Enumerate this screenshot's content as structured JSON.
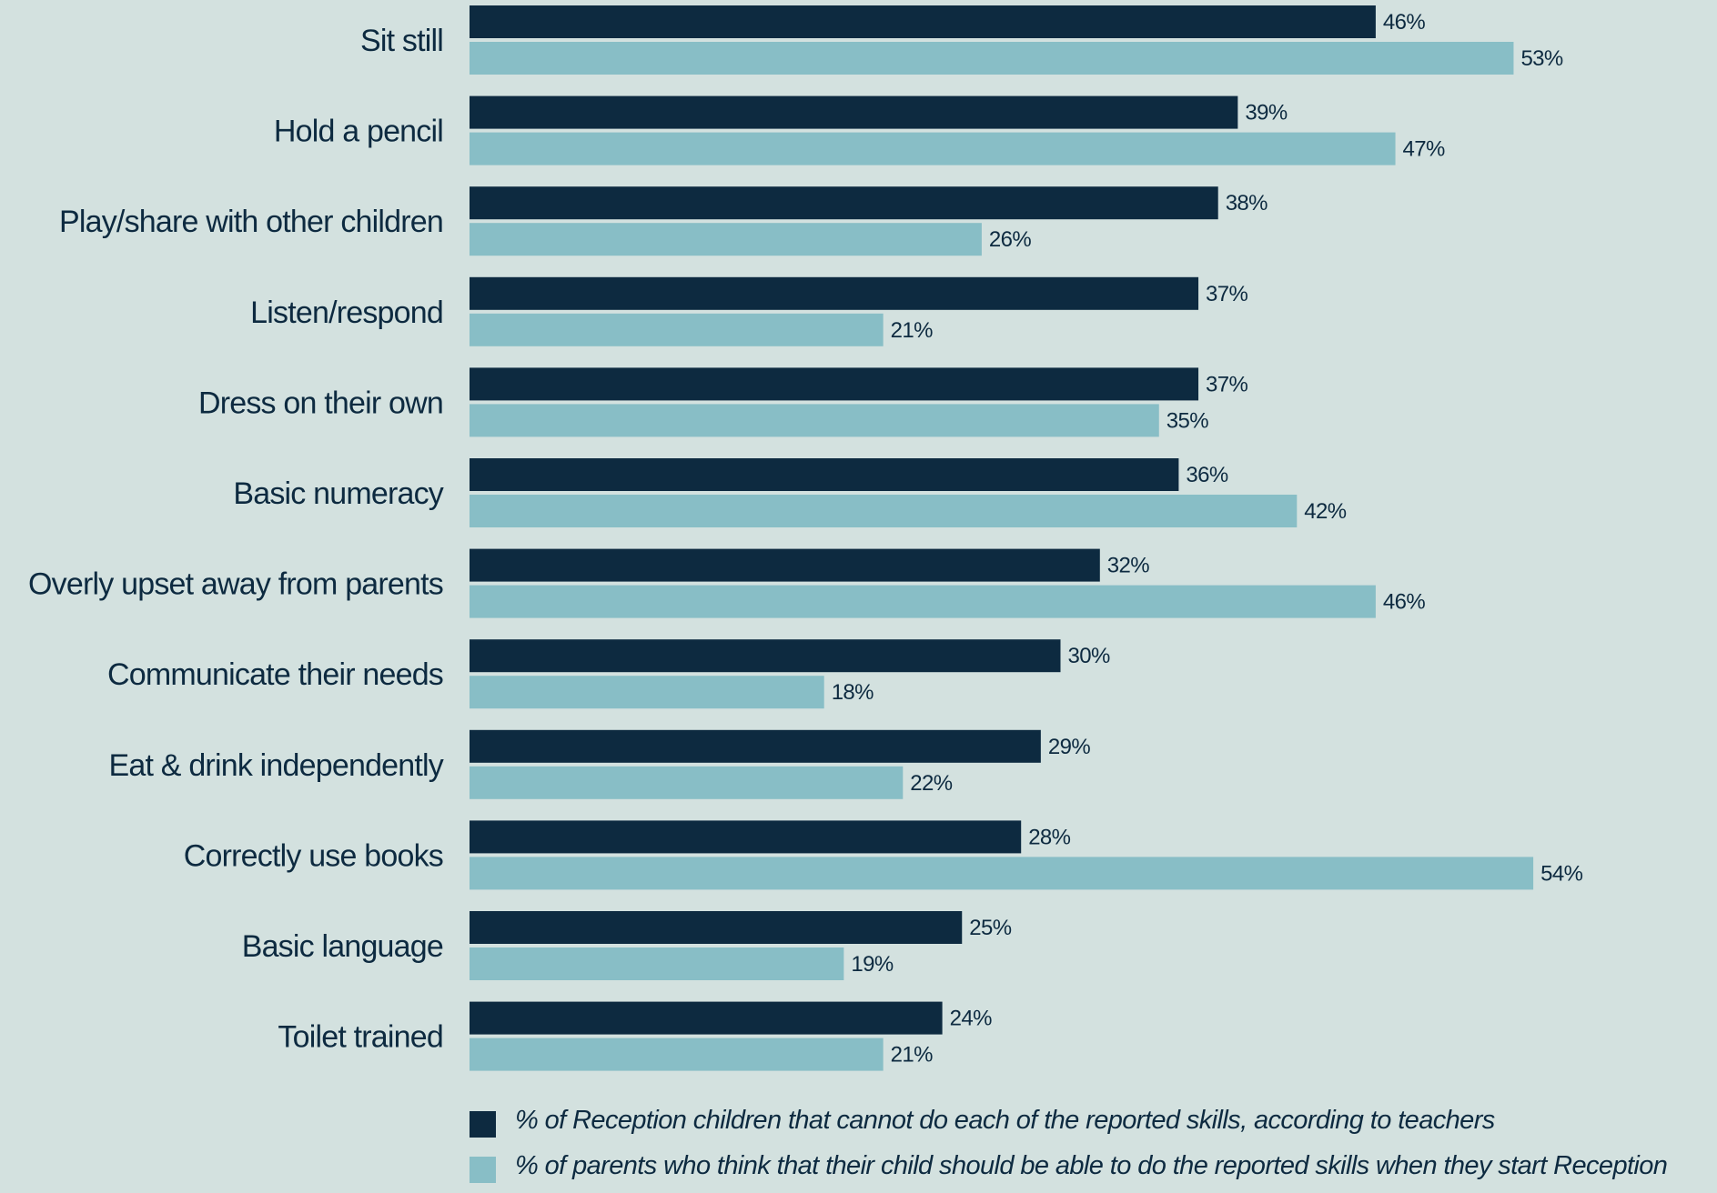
{
  "chart_data": {
    "type": "bar",
    "orientation": "horizontal",
    "categories": [
      "Sit still",
      "Hold a pencil",
      "Play/share with other children",
      "Listen/respond",
      "Dress on their own",
      "Basic numeracy",
      "Overly upset away from parents",
      "Communicate their needs",
      "Eat & drink independently",
      "Correctly use books",
      "Basic language",
      "Toilet trained"
    ],
    "series": [
      {
        "name": "% of Reception children that cannot do each of the reported skills, according to teachers",
        "color": "#0d2a40",
        "values": [
          46,
          39,
          38,
          37,
          37,
          36,
          32,
          30,
          29,
          28,
          25,
          24
        ],
        "labels": [
          "46%",
          "39%",
          "38%",
          "37%",
          "37%",
          "36%",
          "32%",
          "30%",
          "29%",
          "28%",
          "25%",
          "24%"
        ]
      },
      {
        "name": "% of parents who think that their child should be able to do the reported skills when they start Reception",
        "color": "#88bec6",
        "values": [
          53,
          47,
          26,
          21,
          35,
          42,
          46,
          18,
          22,
          54,
          19,
          21
        ],
        "labels": [
          "53%",
          "47%",
          "26%",
          "21%",
          "35%",
          "42%",
          "46%",
          "18%",
          "22%",
          "54%",
          "19%",
          "21%"
        ]
      }
    ],
    "xlim": [
      0,
      54
    ],
    "grid": false,
    "legend_position": "bottom"
  }
}
